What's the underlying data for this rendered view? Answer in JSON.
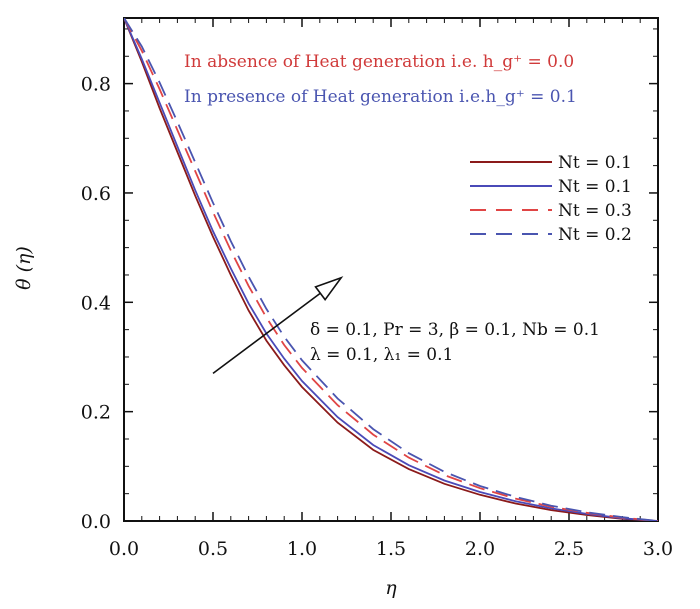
{
  "chart_data": {
    "type": "line",
    "xlabel": "η",
    "ylabel": "θ (η)",
    "xlim": [
      0,
      3
    ],
    "ylim": [
      0,
      0.92
    ],
    "x_ticks": [
      0.0,
      0.5,
      1.0,
      1.5,
      2.0,
      2.5,
      3.0
    ],
    "x_tick_labels": [
      "0.0",
      "0.5",
      "1.0",
      "1.5",
      "2.0",
      "2.5",
      "3.0"
    ],
    "y_ticks": [
      0.0,
      0.2,
      0.4,
      0.6,
      0.8
    ],
    "y_tick_labels": [
      "0.0",
      "0.2",
      "0.4",
      "0.6",
      "0.8"
    ],
    "annotations": {
      "absence": "In absence of Heat generation i.e. h_g⁺ = 0.0",
      "presence": "In presence of Heat generation i.e.h_g⁺ = 0.1",
      "params_line1": "δ = 0.1,  Pr = 3,  β = 0.1,  Nb = 0.1",
      "params_line2": "λ = 0.1,  λ₁ = 0.1"
    },
    "arrow": {
      "from": [
        0.5,
        0.27
      ],
      "to": [
        1.22,
        0.445
      ]
    },
    "legend_placement": "right",
    "series": [
      {
        "name": "Nt = 0.1",
        "color": "#8b1a1a",
        "dash": "solid",
        "x": [
          0,
          0.1,
          0.2,
          0.3,
          0.4,
          0.5,
          0.6,
          0.7,
          0.8,
          0.9,
          1.0,
          1.2,
          1.4,
          1.6,
          1.8,
          2.0,
          2.2,
          2.4,
          2.6,
          2.8,
          3.0
        ],
        "values": [
          0.92,
          0.84,
          0.755,
          0.675,
          0.595,
          0.52,
          0.45,
          0.385,
          0.33,
          0.285,
          0.245,
          0.18,
          0.13,
          0.095,
          0.068,
          0.048,
          0.032,
          0.02,
          0.011,
          0.004,
          0.0
        ]
      },
      {
        "name": "Nt = 0.1",
        "color": "#4a4ab8",
        "dash": "solid",
        "x": [
          0,
          0.1,
          0.2,
          0.3,
          0.4,
          0.5,
          0.6,
          0.7,
          0.8,
          0.9,
          1.0,
          1.2,
          1.4,
          1.6,
          1.8,
          2.0,
          2.2,
          2.4,
          2.6,
          2.8,
          3.0
        ],
        "values": [
          0.92,
          0.845,
          0.765,
          0.685,
          0.605,
          0.53,
          0.462,
          0.398,
          0.343,
          0.297,
          0.256,
          0.19,
          0.139,
          0.102,
          0.074,
          0.053,
          0.036,
          0.023,
          0.013,
          0.005,
          0.0
        ]
      },
      {
        "name": "Nt = 0.3",
        "color": "#e04545",
        "dash": "dashed",
        "x": [
          0,
          0.1,
          0.2,
          0.3,
          0.4,
          0.5,
          0.6,
          0.7,
          0.8,
          0.9,
          1.0,
          1.2,
          1.4,
          1.6,
          1.8,
          2.0,
          2.2,
          2.4,
          2.6,
          2.8,
          3.0
        ],
        "values": [
          0.92,
          0.86,
          0.79,
          0.715,
          0.64,
          0.565,
          0.495,
          0.43,
          0.372,
          0.322,
          0.28,
          0.212,
          0.158,
          0.116,
          0.084,
          0.06,
          0.041,
          0.026,
          0.015,
          0.006,
          0.0
        ]
      },
      {
        "name": "Nt = 0.2",
        "color": "#4a55b0",
        "dash": "dashed",
        "x": [
          0,
          0.1,
          0.2,
          0.3,
          0.4,
          0.5,
          0.6,
          0.7,
          0.8,
          0.9,
          1.0,
          1.2,
          1.4,
          1.6,
          1.8,
          2.0,
          2.2,
          2.4,
          2.6,
          2.8,
          3.0
        ],
        "values": [
          0.92,
          0.868,
          0.802,
          0.73,
          0.656,
          0.582,
          0.512,
          0.447,
          0.388,
          0.337,
          0.294,
          0.224,
          0.168,
          0.124,
          0.09,
          0.064,
          0.044,
          0.028,
          0.016,
          0.007,
          0.0
        ]
      }
    ]
  }
}
